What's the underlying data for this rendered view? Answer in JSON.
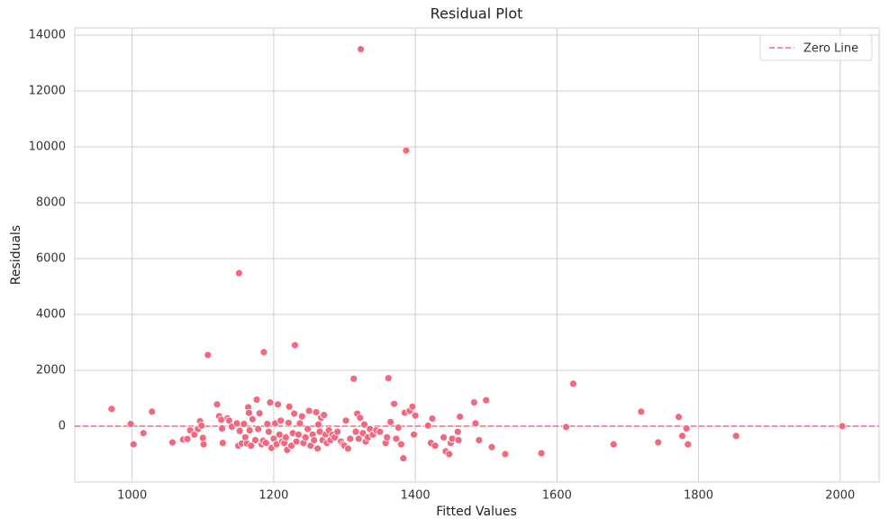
{
  "chart_data": {
    "type": "scatter",
    "title": "Residual Plot",
    "x_label": "Fitted Values",
    "y_label": "Residuals",
    "x": [
      971,
      998,
      1002,
      1016,
      1028,
      1057,
      1072,
      1078,
      1082,
      1088,
      1093,
      1096,
      1098,
      1100,
      1101,
      1107,
      1120,
      1123,
      1126,
      1127,
      1128,
      1135,
      1137,
      1141,
      1148,
      1150,
      1151,
      1152,
      1155,
      1158,
      1160,
      1162,
      1164,
      1165,
      1166,
      1168,
      1170,
      1174,
      1176,
      1178,
      1180,
      1183,
      1185,
      1186,
      1189,
      1191,
      1193,
      1195,
      1197,
      1200,
      1202,
      1204,
      1206,
      1208,
      1210,
      1212,
      1215,
      1217,
      1219,
      1221,
      1222,
      1225,
      1227,
      1229,
      1230,
      1232,
      1235,
      1237,
      1240,
      1242,
      1245,
      1248,
      1250,
      1252,
      1255,
      1257,
      1260,
      1262,
      1263,
      1265,
      1267,
      1269,
      1271,
      1273,
      1275,
      1278,
      1280,
      1283,
      1286,
      1290,
      1295,
      1298,
      1300,
      1302,
      1305,
      1308,
      1313,
      1316,
      1318,
      1320,
      1322,
      1323,
      1326,
      1328,
      1330,
      1333,
      1336,
      1340,
      1345,
      1350,
      1358,
      1360,
      1362,
      1365,
      1370,
      1373,
      1376,
      1380,
      1383,
      1385,
      1387,
      1392,
      1396,
      1398,
      1400,
      1418,
      1422,
      1424,
      1428,
      1440,
      1443,
      1448,
      1450,
      1452,
      1460,
      1461,
      1463,
      1483,
      1485,
      1490,
      1500,
      1508,
      1527,
      1578,
      1613,
      1623,
      1680,
      1719,
      1743,
      1772,
      1777,
      1783,
      1785,
      1853,
      2003
    ],
    "values": [
      620,
      80,
      -650,
      -250,
      520,
      -580,
      -480,
      -460,
      -150,
      -300,
      -100,
      180,
      20,
      -420,
      -650,
      2550,
      780,
      360,
      230,
      -80,
      -600,
      280,
      200,
      -20,
      100,
      -700,
      5480,
      -170,
      -620,
      80,
      -400,
      -620,
      680,
      480,
      -150,
      -700,
      250,
      -500,
      950,
      -100,
      460,
      -650,
      -520,
      2650,
      -600,
      80,
      -200,
      850,
      -780,
      -450,
      100,
      -650,
      780,
      -300,
      200,
      -550,
      -600,
      -400,
      -850,
      120,
      700,
      -700,
      -250,
      450,
      2900,
      -550,
      -300,
      100,
      350,
      -600,
      -400,
      -100,
      550,
      -700,
      -300,
      -500,
      500,
      -800,
      60,
      -200,
      300,
      -500,
      400,
      -300,
      -600,
      -150,
      -500,
      -300,
      -400,
      -200,
      -550,
      -650,
      -700,
      200,
      -800,
      -450,
      1700,
      -200,
      450,
      -450,
      300,
      13500,
      -250,
      60,
      -550,
      -400,
      -100,
      -300,
      -150,
      -200,
      -600,
      -400,
      1720,
      150,
      800,
      -450,
      -50,
      -650,
      -1150,
      480,
      9870,
      550,
      700,
      -300,
      380,
      20,
      -600,
      270,
      -700,
      -400,
      -900,
      -1000,
      -600,
      -450,
      -200,
      -500,
      340,
      850,
      100,
      -500,
      930,
      -750,
      -1000,
      -970,
      -30,
      1520,
      -650,
      520,
      -580,
      330,
      -350,
      -80,
      -650,
      -350,
      0
    ],
    "color": "#f2687f",
    "hline": {
      "value": 0,
      "label": "Zero Line",
      "color": "#f2687f",
      "style": "dashed"
    },
    "legend": "upper right",
    "xlim": [
      919,
      2055
    ],
    "ylim": [
      -2000,
      14260
    ],
    "xticks": [
      1000,
      1200,
      1400,
      1600,
      1800,
      2000
    ],
    "yticks": [
      0,
      2000,
      4000,
      6000,
      8000,
      10000,
      12000,
      14000
    ],
    "grid": true
  }
}
